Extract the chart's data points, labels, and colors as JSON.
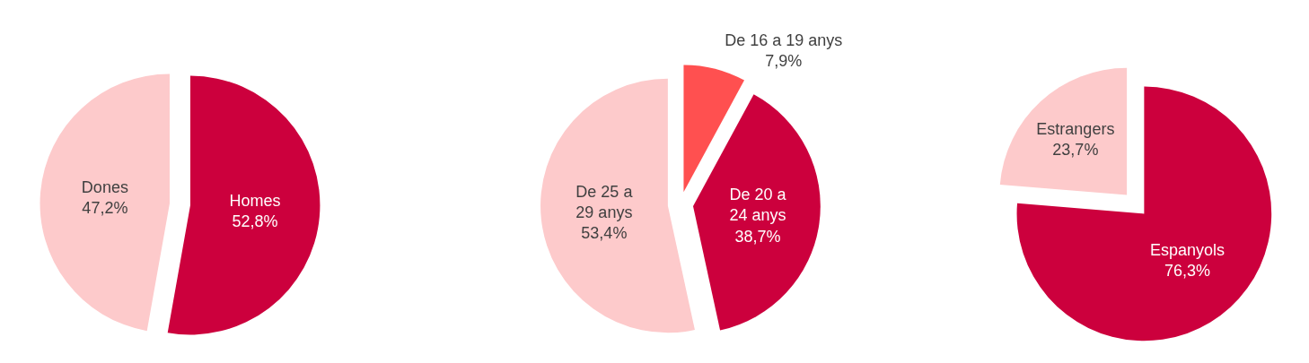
{
  "chart_data": [
    {
      "type": "pie",
      "categories": [
        "Homes",
        "Dones"
      ],
      "values": [
        52.8,
        47.2
      ],
      "value_labels": [
        "52,8%",
        "47,2%"
      ],
      "colors": [
        "#cc003d",
        "#fdcacb"
      ]
    },
    {
      "type": "pie",
      "categories": [
        "De 16 a 19 anys",
        "De 20 a 24 anys",
        "De 25 a 29 anys"
      ],
      "values": [
        7.9,
        38.7,
        53.4
      ],
      "value_labels": [
        "7,9%",
        "38,7%",
        "53,4%"
      ],
      "colors": [
        "#ff5050",
        "#cc003d",
        "#fdcacb"
      ]
    },
    {
      "type": "pie",
      "categories": [
        "Espanyols",
        "Estrangers"
      ],
      "values": [
        76.3,
        23.7
      ],
      "value_labels": [
        "76,3%",
        "23,7%"
      ],
      "colors": [
        "#cc003d",
        "#fdcacb"
      ]
    }
  ]
}
